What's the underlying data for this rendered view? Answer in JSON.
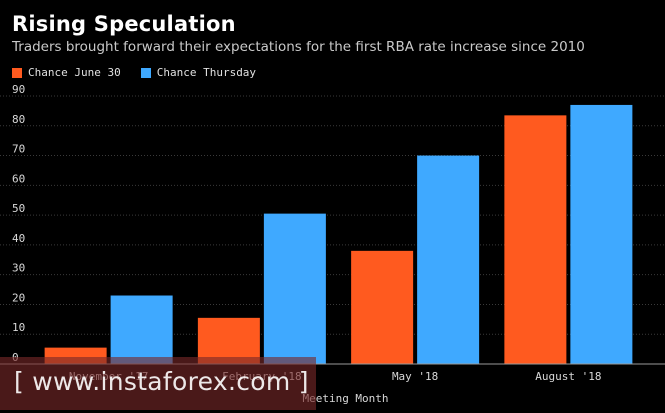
{
  "chart_data": {
    "type": "bar",
    "title": "Rising Speculation",
    "subtitle": "Traders brought forward their expectations for the first RBA rate increase since 2010",
    "categories": [
      "November '17",
      "February '18",
      "May '18",
      "August '18"
    ],
    "series": [
      {
        "name": "Chance June 30",
        "color": "#ff5a1f",
        "values": [
          5.5,
          15.5,
          38,
          83.5
        ]
      },
      {
        "name": "Chance Thursday",
        "color": "#3fa9ff",
        "values": [
          23,
          50.5,
          70,
          87
        ]
      }
    ],
    "xlabel": "Meeting Month",
    "ylabel": "",
    "ylim": [
      0,
      90
    ],
    "yticks": [
      0,
      10,
      20,
      30,
      40,
      50,
      60,
      70,
      80,
      90
    ],
    "grid": true,
    "legend_position": "top-left"
  },
  "watermark": {
    "text": "[ www.instaforex.com ]"
  }
}
